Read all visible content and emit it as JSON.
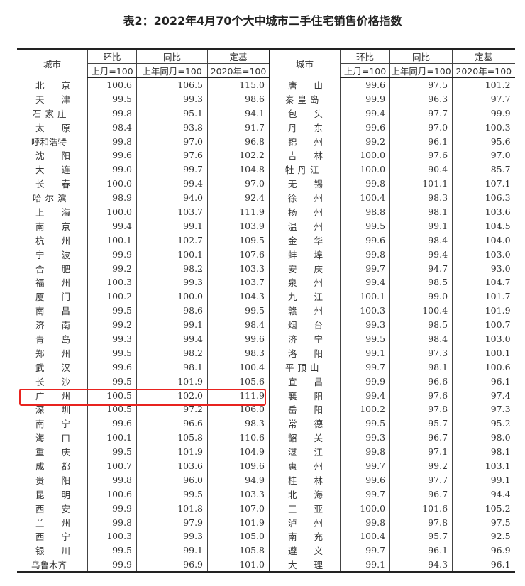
{
  "title": "表2：2022年4月70个大中城市二手住宅销售价格指数",
  "header": {
    "city": "城市",
    "mom": "环比",
    "mom_base": "上月=100",
    "yoy": "同比",
    "yoy_base": "上年同月=100",
    "fixed": "定基",
    "fixed_base": "2020年=100"
  },
  "highlight_color": "#e8231f",
  "highlighted_city": "广州",
  "left": [
    [
      "北京",
      "100.6",
      "106.5",
      "115.0"
    ],
    [
      "天津",
      "99.5",
      "99.3",
      "98.6"
    ],
    [
      "石家庄",
      "99.8",
      "95.1",
      "94.1"
    ],
    [
      "太原",
      "98.4",
      "93.8",
      "91.7"
    ],
    [
      "呼和浩特",
      "99.8",
      "97.0",
      "96.8"
    ],
    [
      "沈阳",
      "99.6",
      "97.6",
      "102.2"
    ],
    [
      "大连",
      "99.0",
      "99.7",
      "104.8"
    ],
    [
      "长春",
      "100.0",
      "99.4",
      "97.0"
    ],
    [
      "哈尔滨",
      "98.9",
      "94.0",
      "92.4"
    ],
    [
      "上海",
      "100.0",
      "103.7",
      "111.9"
    ],
    [
      "南京",
      "99.4",
      "99.1",
      "103.9"
    ],
    [
      "杭州",
      "100.1",
      "102.7",
      "109.5"
    ],
    [
      "宁波",
      "99.9",
      "100.1",
      "107.6"
    ],
    [
      "合肥",
      "99.2",
      "98.2",
      "103.3"
    ],
    [
      "福州",
      "100.3",
      "99.3",
      "103.7"
    ],
    [
      "厦门",
      "100.2",
      "100.0",
      "104.3"
    ],
    [
      "南昌",
      "99.5",
      "98.6",
      "99.5"
    ],
    [
      "济南",
      "99.2",
      "99.1",
      "98.4"
    ],
    [
      "青岛",
      "99.3",
      "99.4",
      "99.6"
    ],
    [
      "郑州",
      "99.5",
      "98.2",
      "98.3"
    ],
    [
      "武汉",
      "99.6",
      "98.1",
      "100.4"
    ],
    [
      "长沙",
      "99.5",
      "101.9",
      "105.6"
    ],
    [
      "广州",
      "100.5",
      "102.0",
      "111.9"
    ],
    [
      "深圳",
      "100.5",
      "97.2",
      "106.0"
    ],
    [
      "南宁",
      "99.6",
      "96.6",
      "98.3"
    ],
    [
      "海口",
      "100.1",
      "105.8",
      "110.6"
    ],
    [
      "重庆",
      "99.5",
      "101.9",
      "104.9"
    ],
    [
      "成都",
      "100.7",
      "103.6",
      "109.6"
    ],
    [
      "贵阳",
      "99.8",
      "96.0",
      "94.9"
    ],
    [
      "昆明",
      "100.6",
      "99.5",
      "103.3"
    ],
    [
      "西安",
      "99.9",
      "101.8",
      "107.0"
    ],
    [
      "兰州",
      "99.8",
      "97.9",
      "101.9"
    ],
    [
      "西宁",
      "100.3",
      "99.3",
      "105.0"
    ],
    [
      "银川",
      "99.5",
      "99.1",
      "105.8"
    ],
    [
      "乌鲁木齐",
      "99.9",
      "96.9",
      "101.0"
    ]
  ],
  "right": [
    [
      "唐山",
      "99.6",
      "97.5",
      "101.2"
    ],
    [
      "秦皇岛",
      "99.9",
      "96.3",
      "97.7"
    ],
    [
      "包头",
      "99.4",
      "97.7",
      "99.9"
    ],
    [
      "丹东",
      "99.6",
      "97.0",
      "100.3"
    ],
    [
      "锦州",
      "99.2",
      "96.1",
      "95.6"
    ],
    [
      "吉林",
      "100.0",
      "97.6",
      "97.0"
    ],
    [
      "牡丹江",
      "100.0",
      "90.4",
      "85.7"
    ],
    [
      "无锡",
      "99.8",
      "101.1",
      "107.1"
    ],
    [
      "徐州",
      "100.4",
      "98.3",
      "106.3"
    ],
    [
      "扬州",
      "98.8",
      "98.1",
      "103.6"
    ],
    [
      "温州",
      "99.5",
      "99.1",
      "104.5"
    ],
    [
      "金华",
      "99.6",
      "98.4",
      "104.0"
    ],
    [
      "蚌埠",
      "99.8",
      "99.4",
      "103.0"
    ],
    [
      "安庆",
      "99.7",
      "94.7",
      "93.0"
    ],
    [
      "泉州",
      "99.4",
      "98.5",
      "104.7"
    ],
    [
      "九江",
      "100.1",
      "99.0",
      "101.7"
    ],
    [
      "赣州",
      "100.3",
      "100.4",
      "101.9"
    ],
    [
      "烟台",
      "99.3",
      "98.5",
      "100.7"
    ],
    [
      "济宁",
      "99.5",
      "98.4",
      "103.0"
    ],
    [
      "洛阳",
      "99.1",
      "97.3",
      "100.1"
    ],
    [
      "平顶山",
      "99.7",
      "98.1",
      "100.6"
    ],
    [
      "宜昌",
      "99.9",
      "96.6",
      "96.1"
    ],
    [
      "襄阳",
      "99.4",
      "97.6",
      "97.4"
    ],
    [
      "岳阳",
      "100.2",
      "97.8",
      "97.3"
    ],
    [
      "常德",
      "99.5",
      "95.7",
      "95.2"
    ],
    [
      "韶关",
      "99.3",
      "96.7",
      "98.0"
    ],
    [
      "湛江",
      "99.8",
      "97.1",
      "98.1"
    ],
    [
      "惠州",
      "99.7",
      "99.2",
      "103.1"
    ],
    [
      "桂林",
      "99.6",
      "97.7",
      "99.1"
    ],
    [
      "北海",
      "99.7",
      "96.7",
      "94.4"
    ],
    [
      "三亚",
      "100.0",
      "101.6",
      "105.2"
    ],
    [
      "泸州",
      "99.8",
      "97.8",
      "97.5"
    ],
    [
      "南充",
      "100.4",
      "95.7",
      "92.5"
    ],
    [
      "遵义",
      "99.7",
      "96.1",
      "96.9"
    ],
    [
      "大理",
      "99.1",
      "94.3",
      "96.1"
    ]
  ]
}
